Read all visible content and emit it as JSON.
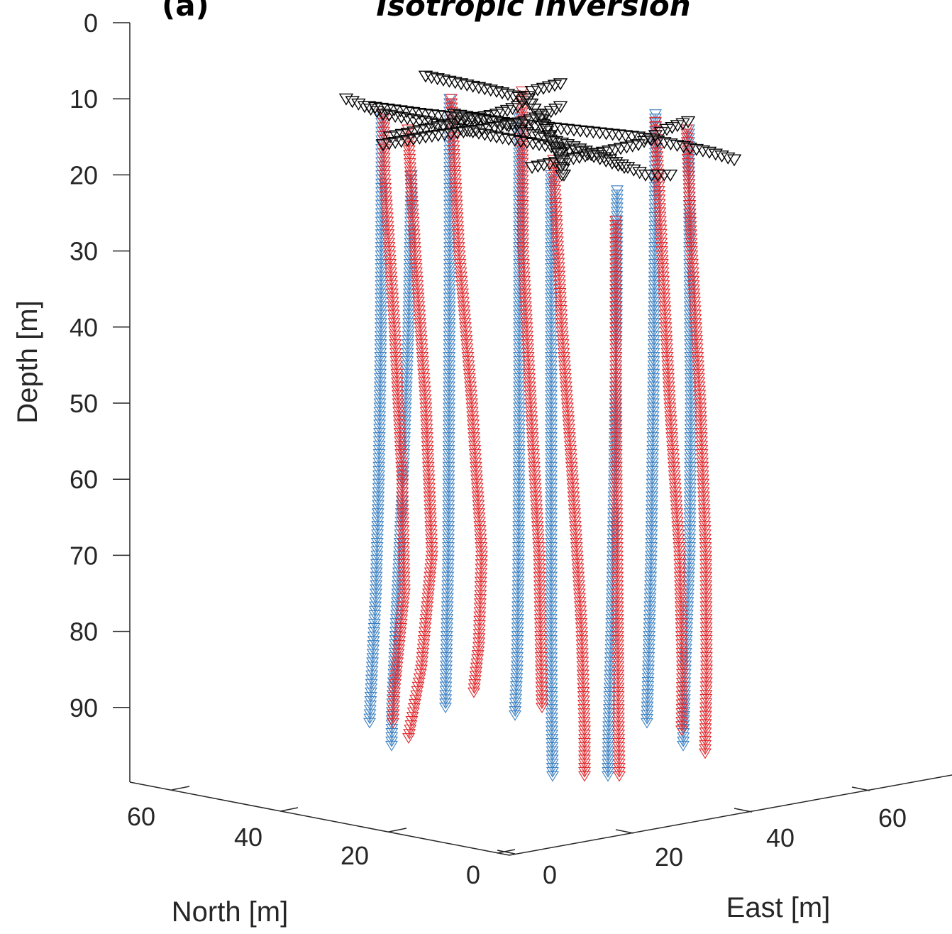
{
  "chart_data": {
    "type": "scatter3d",
    "panel_label": "(a)",
    "title": "Isotropic Inversion",
    "zlabel": "Depth [m]",
    "xlabel": "North [m]",
    "ylabel": "East [m]",
    "z_ticks": [
      "0",
      "10",
      "20",
      "30",
      "40",
      "50",
      "60",
      "70",
      "80",
      "90"
    ],
    "north_ticks": [
      "60",
      "40",
      "20",
      "0"
    ],
    "east_ticks": [
      "0",
      "20",
      "40",
      "60"
    ],
    "z_reversed": true,
    "colors": {
      "series_a": "#3a7fc1",
      "series_b": "#e0262b",
      "receivers": "#000000",
      "axis": "#262626"
    },
    "marker": "down-triangle",
    "series": [
      {
        "color": "#3a7fc1",
        "traces": [
          [
            [
              12,
              538
            ],
            [
              20,
              538
            ],
            [
              40,
              537
            ],
            [
              60,
              534
            ],
            [
              75,
              530
            ],
            [
              88,
              523
            ],
            [
              92,
              521
            ]
          ],
          [
            [
              20,
              580
            ],
            [
              40,
              576
            ],
            [
              60,
              568
            ],
            [
              80,
              558
            ],
            [
              90,
              553
            ],
            [
              95,
              552
            ]
          ],
          [
            [
              10,
              634
            ],
            [
              30,
              634
            ],
            [
              50,
              633
            ],
            [
              70,
              632
            ],
            [
              85,
              629
            ],
            [
              90,
              628
            ]
          ],
          [
            [
              12,
              732
            ],
            [
              30,
              732
            ],
            [
              50,
              732
            ],
            [
              70,
              731
            ],
            [
              85,
              729
            ],
            [
              91,
              726
            ]
          ],
          [
            [
              20,
              777
            ],
            [
              40,
              777
            ],
            [
              60,
              777
            ],
            [
              80,
              777
            ],
            [
              93,
              778
            ],
            [
              99,
              779
            ]
          ],
          [
            [
              22,
              870
            ],
            [
              40,
              869
            ],
            [
              60,
              866
            ],
            [
              80,
              862
            ],
            [
              93,
              858
            ],
            [
              99,
              857
            ]
          ],
          [
            [
              12,
              924
            ],
            [
              30,
              923
            ],
            [
              50,
              921
            ],
            [
              70,
              918
            ],
            [
              85,
              914
            ],
            [
              92,
              912
            ]
          ],
          [
            [
              14,
              971
            ],
            [
              30,
              972
            ],
            [
              50,
              974
            ],
            [
              70,
              972
            ],
            [
              85,
              966
            ],
            [
              95,
              963
            ]
          ]
        ]
      },
      {
        "color": "#e0262b",
        "traces": [
          [
            [
              12,
              541
            ],
            [
              20,
              542
            ],
            [
              40,
              556
            ],
            [
              60,
              567
            ],
            [
              75,
              570
            ],
            [
              88,
              556
            ],
            [
              92,
              554
            ]
          ],
          [
            [
              14,
              575
            ],
            [
              30,
              585
            ],
            [
              50,
              600
            ],
            [
              70,
              609
            ],
            [
              85,
              594
            ],
            [
              94,
              576
            ]
          ],
          [
            [
              10,
              636
            ],
            [
              30,
              647
            ],
            [
              50,
              665
            ],
            [
              70,
              679
            ],
            [
              82,
              675
            ],
            [
              88,
              668
            ]
          ],
          [
            [
              9,
              736
            ],
            [
              30,
              737
            ],
            [
              50,
              748
            ],
            [
              70,
              760
            ],
            [
              85,
              763
            ],
            [
              90,
              764
            ]
          ],
          [
            [
              18,
              780
            ],
            [
              40,
              792
            ],
            [
              60,
              807
            ],
            [
              80,
              820
            ],
            [
              93,
              824
            ],
            [
              99,
              824
            ]
          ],
          [
            [
              26,
              868
            ],
            [
              40,
              868
            ],
            [
              60,
              869
            ],
            [
              80,
              871
            ],
            [
              93,
              872
            ],
            [
              99,
              873
            ]
          ],
          [
            [
              13,
              924
            ],
            [
              30,
              933
            ],
            [
              50,
              944
            ],
            [
              70,
              958
            ],
            [
              85,
              962
            ],
            [
              93,
              961
            ]
          ],
          [
            [
              14,
              968
            ],
            [
              30,
              975
            ],
            [
              50,
              987
            ],
            [
              70,
              995
            ],
            [
              85,
              996
            ],
            [
              96,
              994
            ]
          ]
        ]
      }
    ],
    "receiver_lines": [
      [
        [
          10,
          488
        ],
        [
          12,
          540
        ],
        [
          13,
          600
        ],
        [
          14,
          650
        ],
        [
          15,
          700
        ],
        [
          16,
          760
        ],
        [
          17,
          820
        ],
        [
          19,
          880
        ]
      ],
      [
        [
          7,
          600
        ],
        [
          8,
          650
        ],
        [
          9,
          700
        ],
        [
          10,
          740
        ],
        [
          12,
          760
        ],
        [
          15,
          775
        ],
        [
          17,
          790
        ],
        [
          20,
          795
        ]
      ],
      [
        [
          15,
          550
        ],
        [
          14,
          600
        ],
        [
          13,
          650
        ],
        [
          12,
          700
        ],
        [
          11,
          730
        ],
        [
          9,
          750
        ],
        [
          8,
          790
        ]
      ],
      [
        [
          11,
          520
        ],
        [
          12,
          600
        ],
        [
          13,
          700
        ],
        [
          14,
          800
        ],
        [
          15,
          900
        ],
        [
          17,
          1000
        ],
        [
          18,
          1035
        ]
      ],
      [
        [
          19,
          750
        ],
        [
          18,
          800
        ],
        [
          17,
          850
        ],
        [
          16,
          900
        ],
        [
          14,
          940
        ],
        [
          13,
          970
        ]
      ],
      [
        [
          10,
          745
        ],
        [
          14,
          770
        ],
        [
          18,
          790
        ],
        [
          20,
          792
        ]
      ],
      [
        [
          12,
          640
        ],
        [
          13,
          700
        ],
        [
          15,
          760
        ],
        [
          16,
          800
        ],
        [
          18,
          860
        ],
        [
          20,
          910
        ],
        [
          20,
          945
        ]
      ],
      [
        [
          16,
          540
        ],
        [
          15,
          600
        ],
        [
          14,
          680
        ],
        [
          13,
          740
        ],
        [
          12,
          770
        ],
        [
          11,
          790
        ]
      ]
    ]
  }
}
